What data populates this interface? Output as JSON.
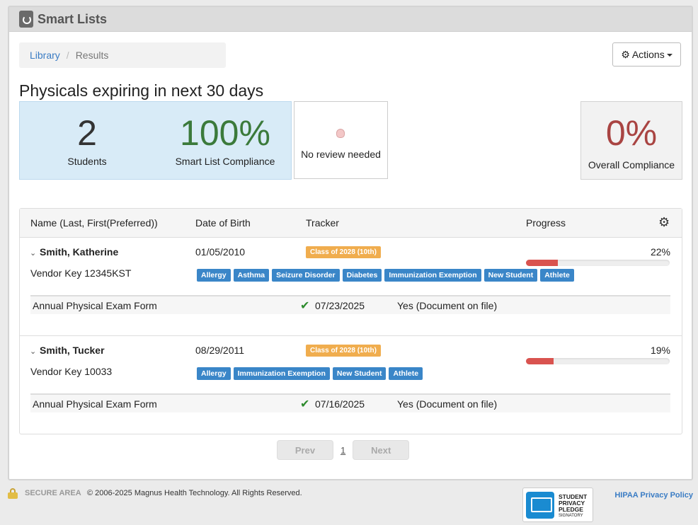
{
  "header": {
    "title": "Smart Lists"
  },
  "breadcrumb": {
    "library": "Library",
    "separator": "/",
    "current": "Results"
  },
  "actions": {
    "label": "Actions"
  },
  "page": {
    "title": "Physicals expiring in next 30 days"
  },
  "stats": {
    "students": {
      "value": "2",
      "label": "Students"
    },
    "smart_compliance": {
      "value": "100%",
      "label": "Smart List Compliance",
      "color": "#3b7a3b"
    },
    "review": {
      "label": "No review needed"
    },
    "overall": {
      "value": "0%",
      "label": "Overall Compliance",
      "color": "#a94442"
    }
  },
  "table": {
    "headers": {
      "name": "Name (Last, First(Preferred))",
      "dob": "Date of Birth",
      "tracker": "Tracker",
      "progress": "Progress"
    },
    "students": [
      {
        "name": "Smith, Katherine",
        "vendor": "Vendor Key 12345KST",
        "dob": "01/05/2010",
        "class": "Class of 2028 (10th)",
        "tags": [
          "Allergy",
          "Asthma",
          "Seizure Disorder",
          "Diabetes",
          "Immunization Exemption",
          "New Student",
          "Athlete"
        ],
        "progress_label": "22%",
        "progress": 0.22,
        "form": {
          "name": "Annual Physical Exam Form",
          "date": "07/23/2025",
          "status": "Yes (Document on file)"
        }
      },
      {
        "name": "Smith, Tucker",
        "vendor": "Vendor Key 10033",
        "dob": "08/29/2011",
        "class": "Class of 2028 (10th)",
        "tags": [
          "Allergy",
          "Immunization Exemption",
          "New Student",
          "Athlete"
        ],
        "progress_label": "19%",
        "progress": 0.19,
        "form": {
          "name": "Annual Physical Exam Form",
          "date": "07/16/2025",
          "status": "Yes (Document on file)"
        }
      }
    ]
  },
  "pager": {
    "prev": "Prev",
    "page": "1",
    "next": "Next"
  },
  "footer": {
    "secure": "SECURE AREA",
    "copyright": "© 2006-2025 Magnus Health Technology. All Rights Reserved.",
    "pledge": {
      "line1": "STUDENT",
      "line2": "PRIVACY",
      "line3": "PLEDGE",
      "line4": "SIGNATORY"
    },
    "hipaa": "HIPAA Privacy Policy"
  }
}
